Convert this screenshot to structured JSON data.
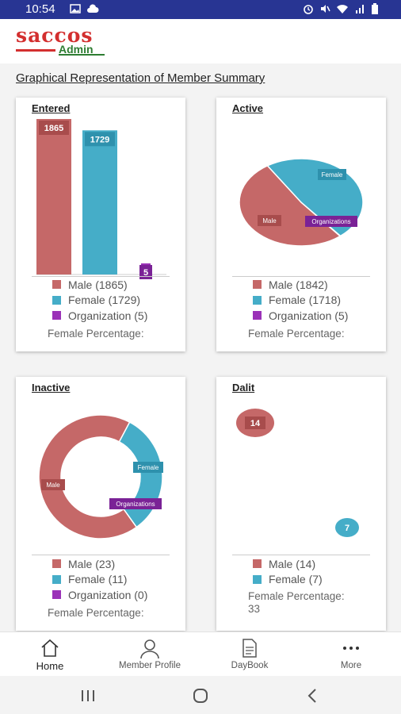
{
  "status": {
    "time": "10:54"
  },
  "app": {
    "logo_main": "saccos",
    "logo_sub": "Admin"
  },
  "page": {
    "title": "Graphical Representation of Member Summary"
  },
  "colors": {
    "male": "#c56868",
    "female": "#45adc8",
    "organization": "#9b32b8"
  },
  "cards": {
    "entered": {
      "title": "Entered",
      "legend": [
        "Male (1865)",
        "Female (1729)",
        "Organization (5)"
      ],
      "female_percentage": "Female Percentage:"
    },
    "active": {
      "title": "Active",
      "legend": [
        "Male (1842)",
        "Female (1718)",
        "Organization (5)"
      ],
      "female_percentage": "Female Percentage:"
    },
    "inactive": {
      "title": "Inactive",
      "legend": [
        "Male (23)",
        "Female (11)",
        "Organization (0)"
      ],
      "female_percentage": "Female Percentage:"
    },
    "dalit": {
      "title": "Dalit",
      "legend": [
        "Male (14)",
        "Female (7)"
      ],
      "female_percentage": "Female Percentage:",
      "female_percentage_value": "33"
    }
  },
  "chart_data": [
    {
      "type": "bar",
      "categories": [
        "Male",
        "Female",
        "Organization"
      ],
      "values": [
        1865,
        1729,
        5
      ],
      "title": "Entered"
    },
    {
      "type": "pie",
      "labels": [
        "Male",
        "Female",
        "Organizations"
      ],
      "values": [
        1842,
        1718,
        5
      ],
      "title": "Active"
    },
    {
      "type": "pie",
      "labels": [
        "Male",
        "Female",
        "Organizations"
      ],
      "values": [
        23,
        11,
        0
      ],
      "title": "Inactive"
    },
    {
      "type": "scatter",
      "labels": [
        "Male",
        "Female"
      ],
      "values": [
        14,
        7
      ],
      "title": "Dalit"
    }
  ],
  "nav": {
    "home": "Home",
    "member_profile": "Member Profile",
    "daybook": "DayBook",
    "more": "More"
  }
}
